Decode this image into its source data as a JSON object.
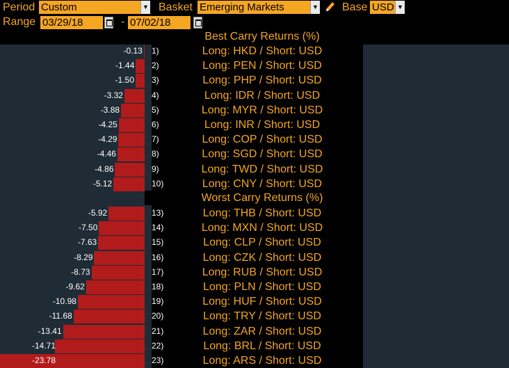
{
  "toolbar": {
    "period_label": "Period",
    "period_value": "Custom",
    "basket_label": "Basket",
    "basket_value": "Emerging Markets",
    "base_label": "Base",
    "base_value": "USD",
    "range_label": "Range",
    "start_date": "03/29/18",
    "range_separator": "-",
    "end_date": "07/02/18"
  },
  "colors": {
    "accent": "#f5a623",
    "bar": "#b21b1b",
    "panel": "#1f2b35",
    "background": "#000000"
  },
  "best_title": "Best Carry Returns (%)",
  "worst_title": "Worst Carry Returns (%)",
  "best": [
    {
      "rank": "1)",
      "value": -0.13,
      "label": "-0.13",
      "pair": "Long: HKD / Short: USD"
    },
    {
      "rank": "2)",
      "value": -1.44,
      "label": "-1.44",
      "pair": "Long: PEN / Short: USD"
    },
    {
      "rank": "3)",
      "value": -1.5,
      "label": "-1.50",
      "pair": "Long: PHP / Short: USD"
    },
    {
      "rank": "4)",
      "value": -3.32,
      "label": "-3.32",
      "pair": "Long: IDR / Short: USD"
    },
    {
      "rank": "5)",
      "value": -3.88,
      "label": "-3.88",
      "pair": "Long: MYR / Short: USD"
    },
    {
      "rank": "6)",
      "value": -4.25,
      "label": "-4.25",
      "pair": "Long: INR / Short: USD"
    },
    {
      "rank": "7)",
      "value": -4.29,
      "label": "-4.29",
      "pair": "Long: COP / Short: USD"
    },
    {
      "rank": "8)",
      "value": -4.46,
      "label": "-4.46",
      "pair": "Long: SGD / Short: USD"
    },
    {
      "rank": "9)",
      "value": -4.86,
      "label": "-4.86",
      "pair": "Long: TWD / Short: USD"
    },
    {
      "rank": "10)",
      "value": -5.12,
      "label": "-5.12",
      "pair": "Long: CNY / Short: USD"
    }
  ],
  "worst": [
    {
      "rank": "13)",
      "value": -5.92,
      "label": "-5.92",
      "pair": "Long: THB / Short: USD"
    },
    {
      "rank": "14)",
      "value": -7.5,
      "label": "-7.50",
      "pair": "Long: MXN / Short: USD"
    },
    {
      "rank": "15)",
      "value": -7.63,
      "label": "-7.63",
      "pair": "Long: CLP / Short: USD"
    },
    {
      "rank": "16)",
      "value": -8.29,
      "label": "-8.29",
      "pair": "Long: CZK / Short: USD"
    },
    {
      "rank": "17)",
      "value": -8.73,
      "label": "-8.73",
      "pair": "Long: RUB / Short: USD"
    },
    {
      "rank": "18)",
      "value": -9.62,
      "label": "-9.62",
      "pair": "Long: PLN / Short: USD"
    },
    {
      "rank": "19)",
      "value": -10.98,
      "label": "-10.98",
      "pair": "Long: HUF / Short: USD"
    },
    {
      "rank": "20)",
      "value": -11.68,
      "label": "-11.68",
      "pair": "Long: TRY / Short: USD"
    },
    {
      "rank": "21)",
      "value": -13.41,
      "label": "-13.41",
      "pair": "Long: ZAR / Short: USD"
    },
    {
      "rank": "22)",
      "value": -14.71,
      "label": "-14.71",
      "pair": "Long: BRL / Short: USD"
    },
    {
      "rank": "23)",
      "value": -23.78,
      "label": "-23.78",
      "pair": "Long: ARS / Short: USD"
    }
  ]
}
